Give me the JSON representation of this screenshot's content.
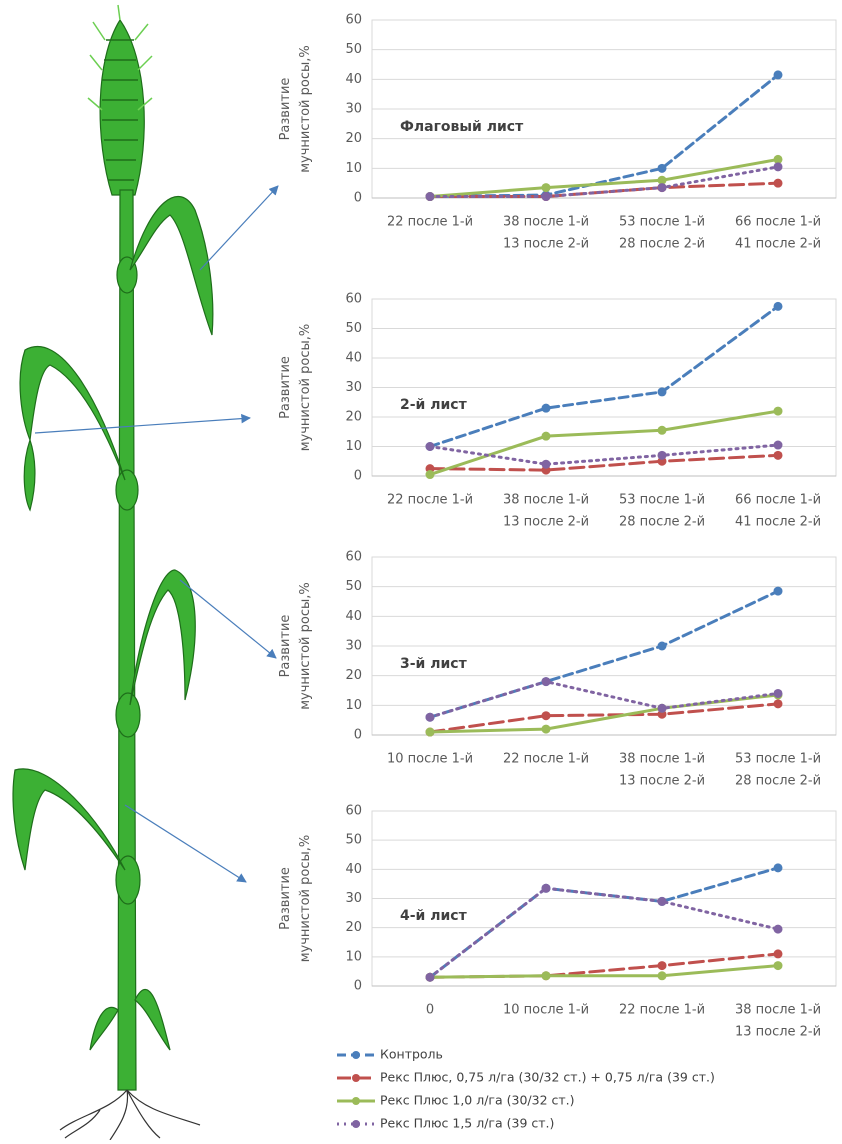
{
  "chart_data": [
    {
      "type": "line",
      "title": "Флаговый лист",
      "ylabel": [
        "Развитие",
        "мучнистой росы,%"
      ],
      "categories": [
        [
          "22 после 1-й"
        ],
        [
          "38 после 1-й",
          "13 после 2-й"
        ],
        [
          "53 после 1-й",
          "28 после 2-й"
        ],
        [
          "66 после 1-й",
          "41 после 2-й"
        ]
      ],
      "ylim": [
        0,
        60
      ],
      "yticks": [
        0,
        10,
        20,
        30,
        40,
        50,
        60
      ],
      "grid": true,
      "series": [
        {
          "color": "#4a7ebb",
          "dash": "9 5",
          "values": [
            0.5,
            1,
            10,
            41.5
          ]
        },
        {
          "color": "#c0504d",
          "dash": "14 6",
          "values": [
            0.5,
            0.5,
            3.5,
            5
          ]
        },
        {
          "color": "#9bbb59",
          "dash": "none",
          "values": [
            0.5,
            3.5,
            6,
            13
          ]
        },
        {
          "color": "#8064a2",
          "dash": "2 5",
          "values": [
            0.5,
            0.5,
            3.5,
            10.5
          ]
        }
      ]
    },
    {
      "type": "line",
      "title": "2-й лист",
      "ylabel": [
        "Развитие",
        "мучнистой росы,%"
      ],
      "categories": [
        [
          "22 после 1-й"
        ],
        [
          "38 после 1-й",
          "13 после 2-й"
        ],
        [
          "53 после 1-й",
          "28 после 2-й"
        ],
        [
          "66 после 1-й",
          "41 после 2-й"
        ]
      ],
      "ylim": [
        0,
        60
      ],
      "yticks": [
        0,
        10,
        20,
        30,
        40,
        50,
        60
      ],
      "grid": true,
      "series": [
        {
          "color": "#4a7ebb",
          "dash": "9 5",
          "values": [
            10,
            23,
            28.5,
            57.5
          ]
        },
        {
          "color": "#c0504d",
          "dash": "14 6",
          "values": [
            2.5,
            2,
            5,
            7
          ]
        },
        {
          "color": "#9bbb59",
          "dash": "none",
          "values": [
            0.5,
            13.5,
            15.5,
            22
          ]
        },
        {
          "color": "#8064a2",
          "dash": "2 5",
          "values": [
            10,
            4,
            7,
            10.5
          ]
        }
      ]
    },
    {
      "type": "line",
      "title": "3-й лист",
      "ylabel": [
        "Развитие",
        "мучнистой росы,%"
      ],
      "categories": [
        [
          "10 после 1-й"
        ],
        [
          "22 после 1-й"
        ],
        [
          "38 после 1-й",
          "13 после 2-й"
        ],
        [
          "53 после 1-й",
          "28 после 2-й"
        ]
      ],
      "ylim": [
        0,
        60
      ],
      "yticks": [
        0,
        10,
        20,
        30,
        40,
        50,
        60
      ],
      "grid": true,
      "series": [
        {
          "color": "#4a7ebb",
          "dash": "9 5",
          "values": [
            6,
            18,
            30,
            48.5
          ]
        },
        {
          "color": "#c0504d",
          "dash": "14 6",
          "values": [
            1,
            6.5,
            7,
            10.5
          ]
        },
        {
          "color": "#9bbb59",
          "dash": "none",
          "values": [
            1,
            2,
            9,
            13.5
          ]
        },
        {
          "color": "#8064a2",
          "dash": "2 5",
          "values": [
            6,
            18,
            9,
            14
          ]
        }
      ]
    },
    {
      "type": "line",
      "title": "4-й лист",
      "ylabel": [
        "Развитие",
        "мучнистой росы,%"
      ],
      "categories": [
        [
          "0"
        ],
        [
          "10 после 1-й"
        ],
        [
          "22 после 1-й"
        ],
        [
          "38 после 1-й",
          "13 после 2-й"
        ]
      ],
      "ylim": [
        0,
        60
      ],
      "yticks": [
        0,
        10,
        20,
        30,
        40,
        50,
        60
      ],
      "grid": true,
      "series": [
        {
          "name": "Контроль",
          "color": "#4a7ebb",
          "dash": "9 5",
          "values": [
            3,
            33.5,
            29,
            40.5
          ]
        },
        {
          "name": "Рекс Плюс, 0,75 л/га (30/32 ст.) + 0,75 л/га (39 ст.)",
          "color": "#c0504d",
          "dash": "14 6",
          "values": [
            3,
            3.5,
            7,
            11
          ]
        },
        {
          "name": "Рекс Плюс 1,0 л/га (30/32 ст.)",
          "color": "#9bbb59",
          "dash": "none",
          "values": [
            3,
            3.5,
            3.5,
            7
          ]
        },
        {
          "name": "Рекс Плюс 1,5 л/га (39  ст.)",
          "color": "#8064a2",
          "dash": "2 5",
          "values": [
            3,
            33.5,
            29,
            19.5
          ]
        }
      ]
    }
  ]
}
